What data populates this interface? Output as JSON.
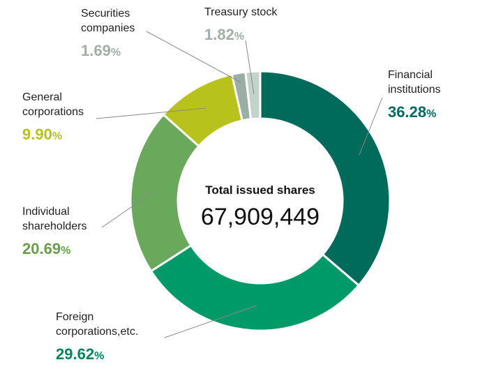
{
  "chart_data": {
    "type": "donut",
    "center_label": "Total issued shares",
    "center_value": "67,909,449",
    "unit": "%",
    "categories": [
      [
        "Financial",
        "institutions"
      ],
      [
        "Foreign",
        "corporations,etc."
      ],
      [
        "Individual",
        "shareholders"
      ],
      [
        "General",
        "corporations"
      ],
      [
        "Securities",
        "companies"
      ],
      [
        "Treasury stock"
      ]
    ],
    "values": [
      36.28,
      29.62,
      20.69,
      9.9,
      1.69,
      1.82
    ],
    "value_labels": [
      "36.28",
      "29.62",
      "20.69",
      "9.90",
      "1.69",
      "1.82"
    ],
    "colors": [
      "#006a5b",
      "#009a68",
      "#6aa85b",
      "#b8c21c",
      "#9aaea3",
      "#c3d3cb"
    ],
    "label_colors": [
      "#006a5b",
      "#00845a",
      "#6a9d4a",
      "#b8c21c",
      "#a0b0a5",
      "#a0b0a5"
    ]
  }
}
